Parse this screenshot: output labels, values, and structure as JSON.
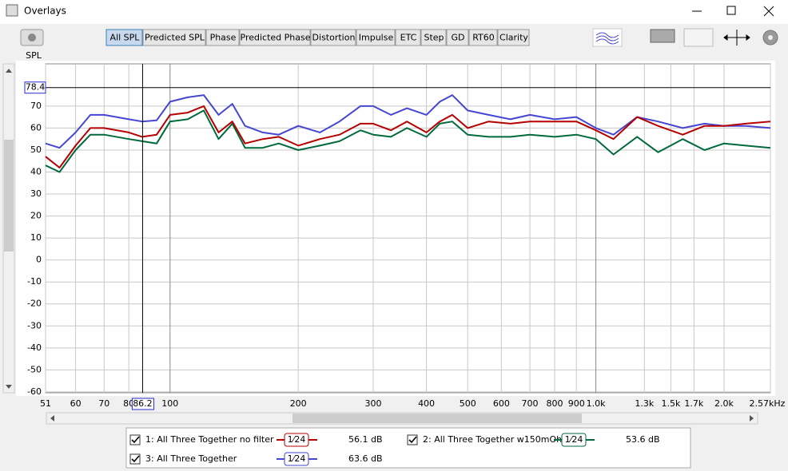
{
  "window": {
    "title": "Overlays"
  },
  "toolbar": {
    "tabs": [
      "All SPL",
      "Predicted SPL",
      "Phase",
      "Predicted Phase",
      "Distortion",
      "Impulse",
      "ETC",
      "Step",
      "GD",
      "RT60",
      "Clarity"
    ],
    "active": 0
  },
  "chart_data": {
    "type": "line",
    "y_label": "SPL",
    "x_scale": "log",
    "grid": true,
    "xlim": [
      51,
      2570
    ],
    "ylim": [
      -60.4,
      89.2
    ],
    "xticks": [
      51,
      60,
      70,
      80,
      100,
      200,
      300,
      400,
      500,
      600,
      700,
      800,
      900,
      {
        "value": 1000,
        "label": "1.0k"
      },
      {
        "value": 1300,
        "label": "1.3k"
      },
      {
        "value": 1500,
        "label": "1.5k"
      },
      {
        "value": 1700,
        "label": "1.7k"
      },
      {
        "value": 2000,
        "label": "2.0k"
      },
      {
        "value": 2570,
        "label": "2.57kHz"
      }
    ],
    "yticks": [
      70,
      60,
      50,
      40,
      30,
      20,
      10,
      0,
      -10,
      -20,
      -30,
      -40,
      -50,
      -60
    ],
    "cursor": {
      "x": 86.2,
      "y": 78.4
    },
    "x": [
      51,
      55,
      60,
      65,
      70,
      80,
      86,
      93,
      100,
      110,
      120,
      130,
      140,
      150,
      165,
      180,
      200,
      225,
      250,
      280,
      300,
      330,
      360,
      400,
      430,
      460,
      500,
      560,
      630,
      700,
      800,
      900,
      1000,
      1100,
      1250,
      1400,
      1600,
      1800,
      2000,
      2250,
      2570
    ],
    "series": [
      {
        "name": "1: All Three Together no filter",
        "color": "#b40000",
        "checked": true,
        "smoothing": "1⁄24",
        "level": "56.1 dB",
        "values": [
          47,
          42,
          52,
          60,
          60,
          58,
          56,
          57,
          66,
          67,
          70,
          58,
          63,
          53,
          55,
          56,
          52,
          55,
          57,
          62,
          62,
          59,
          63,
          58,
          63,
          66,
          60,
          63,
          62,
          63,
          63,
          63,
          59,
          55,
          65,
          61,
          57,
          61,
          61,
          62,
          63
        ]
      },
      {
        "name": "2: All Three Together w150mOhm",
        "color": "#006a3c",
        "checked": true,
        "smoothing": "1⁄24",
        "level": "53.6 dB",
        "values": [
          43,
          40,
          50,
          57,
          57,
          55,
          54,
          53,
          63,
          64,
          68,
          55,
          62,
          51,
          51,
          53,
          50,
          52,
          54,
          59,
          57,
          56,
          60,
          56,
          62,
          63,
          57,
          56,
          56,
          57,
          56,
          57,
          55,
          48,
          56,
          49,
          55,
          50,
          53,
          52,
          51
        ]
      },
      {
        "name": "3: All Three Together",
        "color": "#4646d2",
        "checked": true,
        "smoothing": "1⁄24",
        "level": "63.6 dB",
        "values": [
          53,
          51,
          58,
          66,
          66,
          64,
          63,
          63.5,
          72,
          74,
          75,
          66,
          71,
          61,
          58,
          57,
          61,
          58,
          63,
          70,
          70,
          66,
          69,
          66,
          72,
          75,
          68,
          66,
          64,
          66,
          64,
          65,
          60,
          57,
          65,
          63,
          60,
          62,
          61,
          61,
          60
        ]
      }
    ]
  }
}
